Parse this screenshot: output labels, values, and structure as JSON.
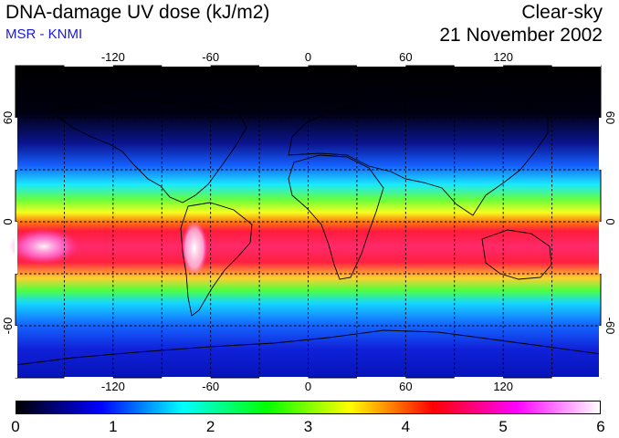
{
  "header": {
    "title": "DNA-damage UV dose (kJ/m2)",
    "subtitle": "MSR - KNMI",
    "condition": "Clear-sky",
    "date": "21 November 2002"
  },
  "map": {
    "projection": "equirectangular",
    "lon_range": [
      -180,
      180
    ],
    "lat_range": [
      -90,
      90
    ],
    "grid_lon": [
      -150,
      -120,
      -90,
      -60,
      -30,
      0,
      30,
      60,
      90,
      120,
      150
    ],
    "grid_lat": [
      -60,
      -30,
      0,
      30,
      60
    ],
    "lon_tick_labels": [
      "-120",
      "-60",
      "0",
      "60",
      "120"
    ],
    "lat_tick_labels": [
      "60",
      "0",
      "-60"
    ],
    "right_lat_tick_labels": [
      "60",
      "0",
      "-60"
    ],
    "gridline_style": "dashed"
  },
  "colorbar": {
    "ticks": [
      "0",
      "1",
      "2",
      "3",
      "4",
      "5",
      "6"
    ],
    "colors": [
      "#000000",
      "#0000ff",
      "#00ffff",
      "#00ff00",
      "#ffff00",
      "#ff0000",
      "#ff00ff",
      "#ffffff"
    ]
  }
}
